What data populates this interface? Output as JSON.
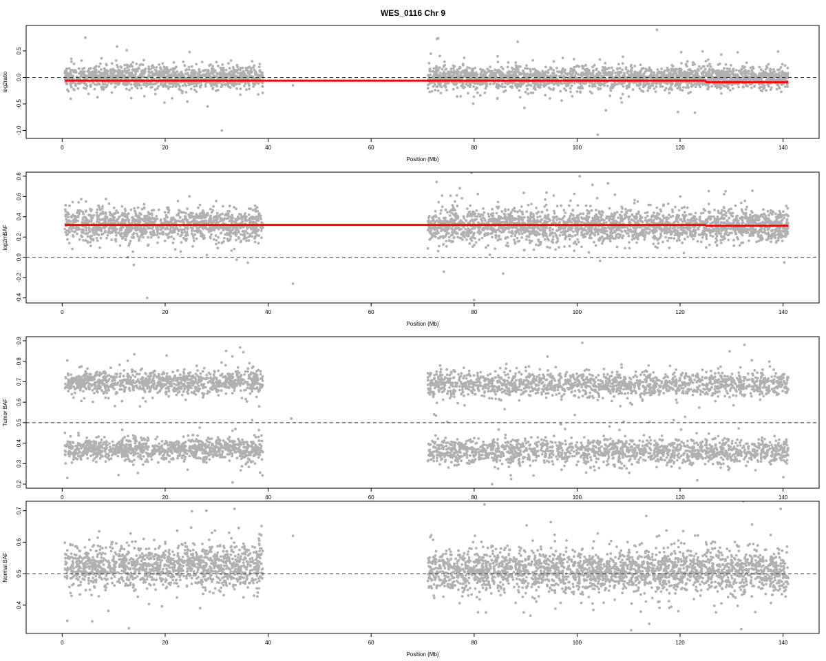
{
  "page": {
    "title": "WES_0116 Chr 9"
  },
  "chart_data": [
    {
      "type": "scatter",
      "ylabel": "log2ratio",
      "xlabel": "Position (Mb)",
      "xlim": [
        -7,
        147
      ],
      "ylim": [
        -1.15,
        0.98
      ],
      "xticks": [
        0,
        20,
        40,
        60,
        80,
        100,
        120,
        140
      ],
      "yticks": [
        -1.0,
        -0.5,
        0.0,
        0.5
      ],
      "ytick_labels": [
        "-1.0",
        "-0.5",
        "0.0",
        "0.5"
      ],
      "grid": false,
      "reference_line": 0.0,
      "clusters": [
        {
          "x": [
            0.5,
            39
          ],
          "center": 0.0,
          "spread": 0.17,
          "count": 1300
        },
        {
          "x": [
            71,
            141
          ],
          "center": -0.01,
          "spread": 0.17,
          "count": 2400
        }
      ],
      "segments": [
        {
          "x": [
            0.5,
            125
          ],
          "y": -0.06
        },
        {
          "x": [
            125,
            141
          ],
          "y": -0.09
        }
      ],
      "outliers": [
        [
          4.5,
          0.75
        ],
        [
          44.8,
          -0.15
        ],
        [
          115.5,
          0.9
        ],
        [
          31,
          -1.0
        ],
        [
          104,
          -1.08
        ],
        [
          73,
          0.74
        ]
      ]
    },
    {
      "type": "scatter",
      "ylabel": "log2mBAF",
      "xlabel": "Position (Mb)",
      "xlim": [
        -7,
        147
      ],
      "ylim": [
        -0.45,
        0.84
      ],
      "xticks": [
        0,
        20,
        40,
        60,
        80,
        100,
        120,
        140
      ],
      "yticks": [
        -0.4,
        -0.2,
        0.0,
        0.2,
        0.4,
        0.6,
        0.8
      ],
      "ytick_labels": [
        "-0.4",
        "-0.2",
        "0.0",
        "0.2",
        "0.4",
        "0.6",
        "0.8"
      ],
      "grid": false,
      "reference_line": 0.0,
      "clusters": [
        {
          "x": [
            0.5,
            39
          ],
          "center": 0.32,
          "spread": 0.13,
          "count": 1300
        },
        {
          "x": [
            71,
            141
          ],
          "center": 0.31,
          "spread": 0.13,
          "count": 2400
        }
      ],
      "segments": [
        {
          "x": [
            0.5,
            125
          ],
          "y": 0.32
        },
        {
          "x": [
            125,
            141
          ],
          "y": 0.31
        }
      ],
      "outliers": [
        [
          44.8,
          -0.26
        ],
        [
          100.5,
          0.8
        ],
        [
          16.5,
          -0.4
        ],
        [
          80,
          -0.42
        ],
        [
          106,
          0.73
        ]
      ]
    },
    {
      "type": "scatter",
      "ylabel": "Tumor BAF",
      "xlabel": "",
      "xlim": [
        -7,
        147
      ],
      "ylim": [
        0.18,
        0.92
      ],
      "xticks": [
        0,
        20,
        40,
        60,
        80,
        100,
        120,
        140
      ],
      "yticks": [
        0.2,
        0.3,
        0.4,
        0.5,
        0.6,
        0.7,
        0.8,
        0.9
      ],
      "ytick_labels": [
        "0.2",
        "0.3",
        "0.4",
        "0.5",
        "0.6",
        "0.7",
        "0.8",
        "0.9"
      ],
      "grid": false,
      "reference_line": 0.5,
      "clusters": [
        {
          "x": [
            0.5,
            39
          ],
          "center": 0.7,
          "spread": 0.045,
          "count": 1000
        },
        {
          "x": [
            0.5,
            39
          ],
          "center": 0.37,
          "spread": 0.045,
          "count": 1000
        },
        {
          "x": [
            71,
            141
          ],
          "center": 0.69,
          "spread": 0.05,
          "count": 1500
        },
        {
          "x": [
            71,
            141
          ],
          "center": 0.36,
          "spread": 0.05,
          "count": 1500
        }
      ],
      "segments": [],
      "outliers": [
        [
          44.5,
          0.52
        ],
        [
          83.5,
          0.2
        ],
        [
          101,
          0.89
        ],
        [
          1,
          0.23
        ],
        [
          132.5,
          0.88
        ]
      ]
    },
    {
      "type": "scatter",
      "ylabel": "Normal BAF",
      "xlabel": "Position (Mb)",
      "xlim": [
        -7,
        147
      ],
      "ylim": [
        0.31,
        0.73
      ],
      "xticks": [
        0,
        20,
        40,
        60,
        80,
        100,
        120,
        140
      ],
      "yticks": [
        0.4,
        0.5,
        0.6,
        0.7
      ],
      "ytick_labels": [
        "0.4",
        "0.5",
        "0.6",
        "0.7"
      ],
      "grid": false,
      "reference_line": 0.5,
      "clusters": [
        {
          "x": [
            0.5,
            39
          ],
          "center": 0.52,
          "spread": 0.055,
          "count": 1300
        },
        {
          "x": [
            71,
            141
          ],
          "center": 0.51,
          "spread": 0.055,
          "count": 2400
        }
      ],
      "segments": [],
      "outliers": [
        [
          44.8,
          0.62
        ],
        [
          110.5,
          0.32
        ],
        [
          82,
          0.72
        ],
        [
          28,
          0.7
        ],
        [
          1,
          0.35
        ]
      ]
    }
  ],
  "colors": {
    "points": "#b0b0b0",
    "segment": "#ff0000",
    "reference_line": "#333333",
    "axis": "#000000"
  }
}
